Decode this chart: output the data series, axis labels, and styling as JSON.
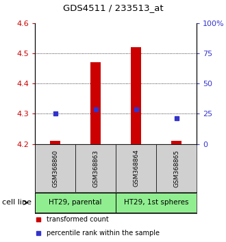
{
  "title": "GDS4511 / 233513_at",
  "samples": [
    "GSM368860",
    "GSM368863",
    "GSM368864",
    "GSM368865"
  ],
  "red_values": [
    4.21,
    4.47,
    4.52,
    4.21
  ],
  "blue_values": [
    4.3,
    4.315,
    4.315,
    4.285
  ],
  "red_base": 4.2,
  "ylim": [
    4.2,
    4.6
  ],
  "yticks_left": [
    4.2,
    4.3,
    4.4,
    4.5,
    4.6
  ],
  "yticks_right_labels": [
    "0",
    "25",
    "50",
    "75",
    "100%"
  ],
  "left_color": "#cc0000",
  "right_color": "#3333cc",
  "bar_color": "#cc0000",
  "dot_color": "#3333cc",
  "bar_width": 0.25,
  "cell_line_label": "cell line",
  "legend_items": [
    "transformed count",
    "percentile rank within the sample"
  ],
  "sample_bg": "#d0d0d0",
  "plot_bg": "#ffffff",
  "green_color": "#90EE90",
  "groups_info": [
    [
      0,
      1,
      "HT29, parental"
    ],
    [
      2,
      3,
      "HT29, 1st spheres"
    ]
  ]
}
